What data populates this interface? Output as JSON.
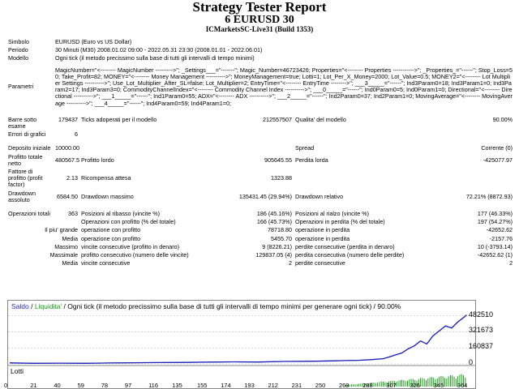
{
  "header": {
    "title": "Strategy Tester Report",
    "subtitle": "6 EURUSD 30",
    "server": "ICMarketsSC-Live31 (Build 1353)"
  },
  "settings": {
    "simbolo_label": "Simbolo",
    "simbolo": "EURUSD (Euro vs US Dollar)",
    "periodo_label": "Periodo",
    "periodo": "30 Minuti (M30) 2008.01.02 09:00 - 2022.05.31 23:30 (2008.01.01 - 2022.06.01)",
    "modello_label": "Modello",
    "modello": "Ogni tick (il metodo precissimo sulla base di tutti gli intervalli di tempo minimi)",
    "parametri_label": "Parametri",
    "parametri": "MagicNumber=\"<-------- MagicNumber --------->\"; _Settings___=\"-------\"; Magic_Number=46723426; Properties=\"<-------- Properties ----------->\"; _Properties_=\"------\"; Stop_Loss=50; Take_Profit=82; MONEY=\"<-------- Money Management ---------->\"; MoneyManagement=true; Lotti=1; Lot_Per_X_Money=2000; Lot_Value=0.5; MONEY2=\"<-------- Lot Multiplier Settings ---------->\"; Use_Lot_Multiplier_After_SL=false; Lot_Multiplier=2; EntryTime=\"<-------- EntryTime -------->\"; ___3_____=\"------\"; Ind3Param0=18; Ind3Param1=0; Ind3Param2=17; Ind3Param3=0; CommodityChannelIndex=\"<-------- Commodity Channel Index ---------->\"; ___0_____=\"------\"; Ind0Param0=5; Ind0Param1=0; Directional=\"<-------- Directional ---------->\"; ___1_____=\"------\"; Ind1Param0=55; ADX=\"<-------- ADX ---------->\"; ___2_____=\"------\"; Ind2Param0=37; Ind2Param1=0; MovingAverage=\"<-------- MovingAverage ---------->\"; ___4_____=\"------\"; Ind4Param0=59; Ind4Param1=0;"
  },
  "stats": {
    "barre_label": "Barre sotto esame",
    "barre": "179437",
    "ticks_label": "Ticks adoperati per il modello",
    "ticks": "212557507",
    "qualita_label": "Qualita' del modello",
    "qualita": "90.00%",
    "errori_label": "Errori di grafici",
    "errori": "6",
    "deposito_label": "Deposito iniziale",
    "deposito": "10000.00",
    "spread_label": "Spread",
    "spread": "Corrente (0)",
    "profitto_netto_label": "Profitto totale netto",
    "profitto_netto": "480567.58",
    "profitto_lordo_label": "Profitto lordo",
    "profitto_lordo": "905645.55",
    "perdita_lorda_label": "Perdita lorda",
    "perdita_lorda": "-425077.97",
    "fattore_label": "Fattore di profitto (profit factor)",
    "fattore": "2.13",
    "ricompensa_label": "Ricompensa attesa",
    "ricompensa": "1323.88",
    "dd_assoluto_label": "Drawdown assoluto",
    "dd_assoluto": "6584.50",
    "dd_massimo_label": "Drawdown massimo",
    "dd_massimo": "135431.45 (29.94%)",
    "dd_relativo_label": "Drawdown relativo",
    "dd_relativo": "72.21% (8872.93)",
    "operazioni_label": "Operazioni totali",
    "operazioni": "363",
    "ribasso_label": "Posizioni al ribasso (vincite %)",
    "ribasso": "186 (45.16%)",
    "rialzo_label": "Posizioni al rialzo (vincite %)",
    "rialzo": "177 (46.33%)",
    "op_profitto_label": "Operazioni con profitto (% del totale)",
    "op_profitto": "166 (45.73%)",
    "op_perdita_label": "Operazioni in perdita (% del totale)",
    "op_perdita": "197 (54.27%)",
    "piu_grande_label": "Il piu' grande",
    "piu_grande_profitto_label": "operazione con profitto",
    "piu_grande_profitto": "78718.80",
    "piu_grande_perdita_label": "operazione in perdita",
    "piu_grande_perdita": "-42652.62",
    "media_label": "Media",
    "media_profitto_label": "operazione con profitto",
    "media_profitto": "5455.70",
    "media_perdita_label": "operazione in perdita",
    "media_perdita": "-2157.76",
    "massimo_label": "Massimo",
    "massimo_vincite_label": "vincite consecutive (profitto in denaro)",
    "massimo_vincite": "9 (8226.21)",
    "massimo_perdite_label": "perdite consecutive (perdita in denaro)",
    "massimo_perdite": "10 (-3793.14)",
    "massimale_label": "Massimale",
    "massimale_profitto_label": "profitto consecutivo (numero delle vincite)",
    "massimale_profitto": "129837.05 (4)",
    "massimale_perdita_label": "perdita consecutiva (numero delle perdite)",
    "massimale_perdita": "-42652.62 (1)",
    "media2_label": "Media",
    "media_vincite_label": "vincite consecutive",
    "media_vincite": "2",
    "media_perdite_label": "perdite consecutive",
    "media_perdite": "2"
  },
  "chart_data": {
    "type": "line",
    "legend": {
      "saldo": "Saldo",
      "sep1": " / ",
      "liquidita": "Liquidita'",
      "desc": " / Ogni tick (il metodo precissimo sulla base di tutti gli intervalli di tempo minimi per generare ogni tick) / 90.00%"
    },
    "sub_label": "Lotti",
    "yticks": [
      0,
      160837,
      321673,
      482510
    ],
    "xticks": [
      0,
      21,
      40,
      59,
      78,
      97,
      116,
      135,
      155,
      174,
      193,
      212,
      231,
      250,
      269,
      288,
      307,
      326,
      345,
      364
    ],
    "xlim": [
      0,
      370
    ],
    "ylim": [
      0,
      520000
    ],
    "series": [
      {
        "x": [
          0,
          20,
          40,
          60,
          80,
          100,
          120,
          140,
          160,
          180,
          200,
          220,
          240,
          260,
          270,
          280,
          290,
          300,
          305,
          310,
          315,
          320,
          325,
          330,
          335,
          340,
          345,
          350,
          355,
          360,
          365,
          367
        ],
        "values": [
          10000,
          6000,
          7000,
          6000,
          9000,
          11000,
          13000,
          15000,
          18000,
          20000,
          19000,
          24000,
          26000,
          30000,
          33000,
          36000,
          42000,
          52000,
          70000,
          90000,
          110000,
          150000,
          180000,
          230000,
          200000,
          280000,
          330000,
          380000,
          360000,
          420000,
          470000,
          490567
        ]
      }
    ],
    "colors": {
      "saldo": "#1f1fbf",
      "liquidita": "#12a012",
      "grid": "#bbbbbb",
      "lots": "#12a012"
    },
    "lots_region_x": [
      270,
      367
    ]
  }
}
